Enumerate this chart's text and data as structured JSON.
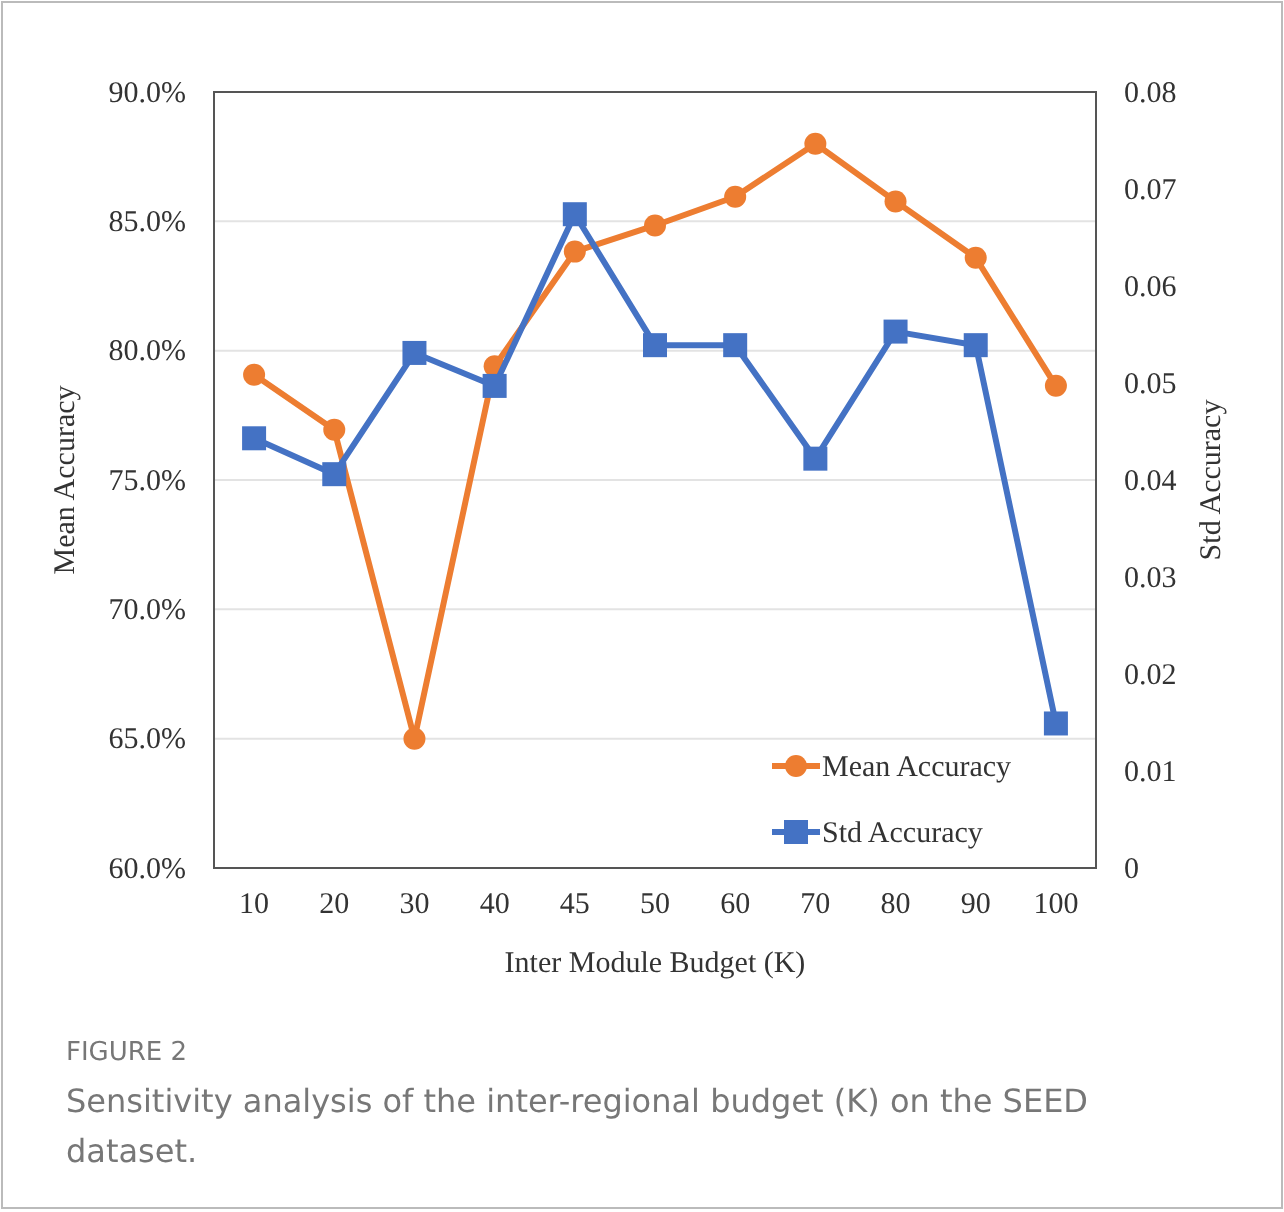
{
  "chart_data": {
    "type": "line",
    "categories": [
      "10",
      "20",
      "30",
      "40",
      "45",
      "50",
      "60",
      "70",
      "80",
      "90",
      "100"
    ],
    "series": [
      {
        "name": "Mean Accuracy",
        "color": "#ed7d31",
        "marker": "circle",
        "values": [
          79.07,
          76.94,
          65.0,
          79.4,
          83.83,
          84.84,
          85.95,
          88.0,
          85.77,
          83.59,
          78.64
        ]
      },
      {
        "name": "Std Accuracy",
        "color": "#4472c4",
        "marker": "square",
        "axis": "y2",
        "values": [
          0.0443,
          0.0406,
          0.0531,
          0.0497,
          0.0674,
          0.0539,
          0.0539,
          0.0422,
          0.0553,
          0.0539,
          0.0149
        ]
      }
    ],
    "xlabel": "Inter Module Budget (K)",
    "ylabel": "Mean Accuracy",
    "y2label": "Std Accuracy",
    "ylim": [
      60,
      90
    ],
    "yticks": [
      {
        "value": 60,
        "label": "60.0%"
      },
      {
        "value": 65,
        "label": "65.0%"
      },
      {
        "value": 70,
        "label": "70.0%"
      },
      {
        "value": 75,
        "label": "75.0%"
      },
      {
        "value": 80,
        "label": "80.0%"
      },
      {
        "value": 85,
        "label": "85.0%"
      },
      {
        "value": 90,
        "label": "90.0%"
      }
    ],
    "y2lim": [
      0,
      0.08
    ],
    "y2ticks": [
      0,
      0.01,
      0.02,
      0.03,
      0.04,
      0.05,
      0.06,
      0.07,
      0.08
    ],
    "grid": "y",
    "legend": "bottom right",
    "line_style": "solid",
    "annotations": [
      "FIGURE 2",
      "Sensitivity analysis of the inter-regional budget (K) on the SEED dataset."
    ]
  }
}
